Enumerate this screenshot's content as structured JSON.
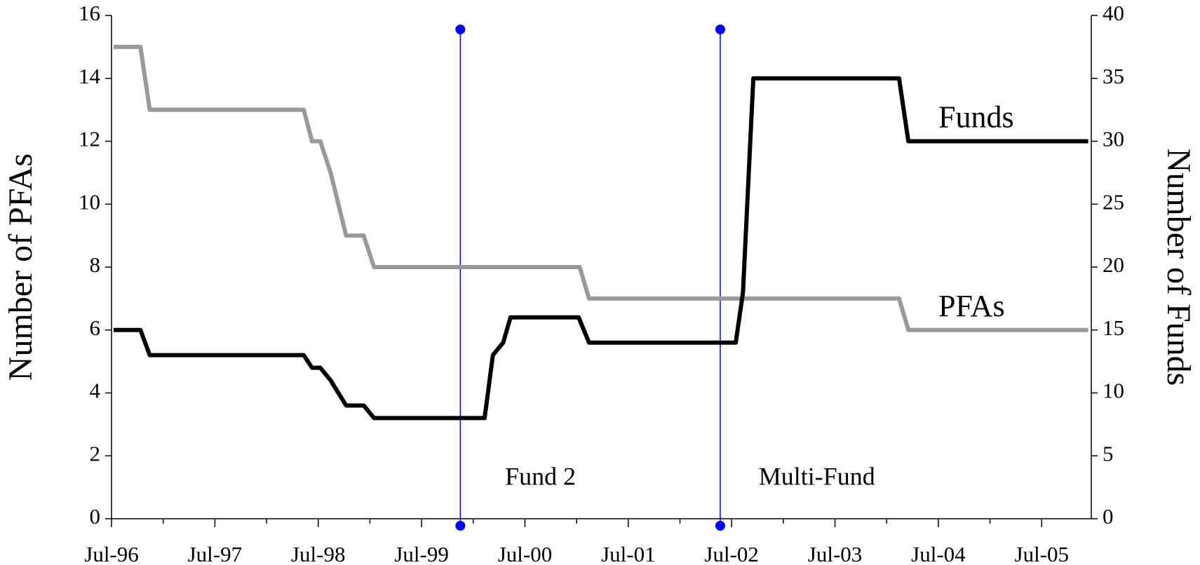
{
  "chart_data": {
    "type": "line",
    "ylabel": "Number of PFAs",
    "y2label": "Number of Funds",
    "xlim": [
      1996.5,
      2005.98
    ],
    "xticks": [
      {
        "value": 1996.5,
        "label": "Jul-96"
      },
      {
        "value": 1997.5,
        "label": "Jul-97"
      },
      {
        "value": 1998.5,
        "label": "Jul-98"
      },
      {
        "value": 1999.5,
        "label": "Jul-99"
      },
      {
        "value": 2000.5,
        "label": "Jul-00"
      },
      {
        "value": 2001.5,
        "label": "Jul-01"
      },
      {
        "value": 2002.5,
        "label": "Jul-02"
      },
      {
        "value": 2003.5,
        "label": "Jul-03"
      },
      {
        "value": 2004.5,
        "label": "Jul-04"
      },
      {
        "value": 2005.5,
        "label": "Jul-05"
      }
    ],
    "ylim": [
      0,
      16
    ],
    "yticks": [
      0,
      2,
      4,
      6,
      8,
      10,
      12,
      14,
      16
    ],
    "y2lim": [
      0,
      40
    ],
    "y2ticks": [
      0,
      5,
      10,
      15,
      20,
      25,
      30,
      35,
      40
    ],
    "series": [
      {
        "name": "PFAs",
        "color": "#999999",
        "axis": "y",
        "x": [
          1996.52,
          1996.78,
          1996.87,
          1998.36,
          1998.44,
          1998.52,
          1998.62,
          1998.77,
          1998.94,
          1999.04,
          2001.03,
          2001.12,
          2004.12,
          2004.21,
          2005.95
        ],
        "values": [
          15,
          15,
          13,
          13,
          12,
          12,
          11,
          9,
          9,
          8,
          8,
          7,
          7,
          6,
          6
        ]
      },
      {
        "name": "Funds",
        "color": "#000000",
        "axis": "y2",
        "x": [
          1996.52,
          1996.78,
          1996.87,
          1998.36,
          1998.44,
          1998.52,
          1998.62,
          1998.77,
          1998.94,
          1999.04,
          2000.11,
          2000.19,
          2000.29,
          2000.36,
          2001.02,
          2001.12,
          2002.54,
          2002.61,
          2002.71,
          2004.12,
          2004.21,
          2005.95
        ],
        "values": [
          15,
          15,
          13,
          13,
          12,
          12,
          11,
          9,
          9,
          8,
          8,
          13,
          14,
          16,
          16,
          14,
          14,
          18,
          35,
          35,
          30,
          30
        ]
      }
    ],
    "events": [
      {
        "x": 1999.875,
        "label": "Fund 2",
        "color": "#0000ee"
      },
      {
        "x": 2002.39,
        "label": "Multi-Fund",
        "color": "#0000ee"
      }
    ]
  }
}
